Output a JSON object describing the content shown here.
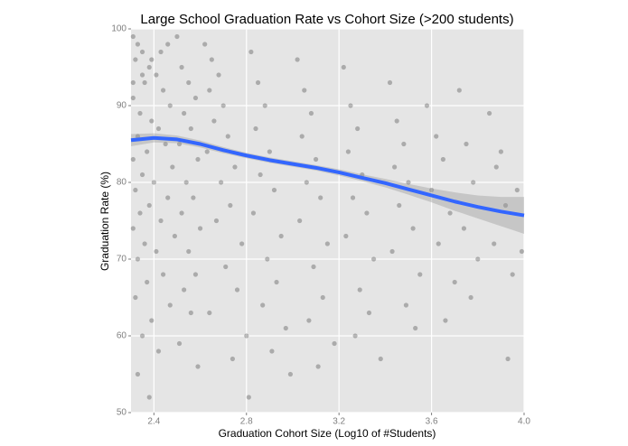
{
  "chart_data": {
    "type": "scatter",
    "title": "Large School Graduation Rate vs Cohort Size (>200 students)",
    "x_label": "Graduation Cohort Size (Log10 of #Students)",
    "y_label": "Graduation Rate (%)",
    "xlim": [
      2.301,
      4.0
    ],
    "ylim": [
      50,
      100
    ],
    "xticks": [
      2.4,
      2.8,
      3.2,
      3.6,
      {
        "value": 4.0,
        "label": "4.0"
      }
    ],
    "yticks": [
      50,
      60,
      70,
      80,
      90,
      100
    ],
    "grid": true,
    "series": [
      {
        "color": "#000000",
        "x": [
          2.31,
          2.33,
          2.35,
          2.32,
          2.38,
          2.41,
          2.36,
          2.44,
          2.31,
          2.47,
          2.34,
          2.39,
          2.42,
          2.33,
          2.45,
          2.37,
          2.31,
          2.48,
          2.35,
          2.4,
          2.32,
          2.46,
          2.38,
          2.34,
          2.43,
          2.31,
          2.49,
          2.36,
          2.41,
          2.33,
          2.44,
          2.37,
          2.32,
          2.47,
          2.39,
          2.35,
          2.42,
          2.33,
          2.38,
          2.31,
          2.35,
          2.39,
          2.43,
          2.46,
          2.5,
          2.52,
          2.55,
          2.58,
          2.53,
          2.56,
          2.51,
          2.59,
          2.54,
          2.57,
          2.52,
          2.6,
          2.55,
          2.58,
          2.53,
          2.56,
          2.51,
          2.59,
          2.62,
          2.65,
          2.68,
          2.64,
          2.7,
          2.66,
          2.72,
          2.63,
          2.75,
          2.69,
          2.73,
          2.67,
          2.78,
          2.71,
          2.76,
          2.64,
          2.8,
          2.74,
          2.82,
          2.85,
          2.88,
          2.84,
          2.9,
          2.86,
          2.92,
          2.83,
          2.95,
          2.89,
          2.93,
          2.87,
          2.97,
          2.91,
          2.99,
          2.81,
          3.02,
          3.05,
          3.08,
          3.04,
          3.1,
          3.06,
          3.12,
          3.03,
          3.15,
          3.09,
          3.13,
          3.07,
          3.18,
          3.11,
          3.22,
          3.25,
          3.28,
          3.24,
          3.3,
          3.26,
          3.32,
          3.23,
          3.35,
          3.29,
          3.33,
          3.27,
          3.38,
          3.42,
          3.45,
          3.48,
          3.44,
          3.5,
          3.46,
          3.52,
          3.43,
          3.55,
          3.49,
          3.53,
          3.58,
          3.62,
          3.65,
          3.6,
          3.68,
          3.63,
          3.7,
          3.66,
          3.72,
          3.75,
          3.78,
          3.74,
          3.8,
          3.77,
          3.85,
          3.88,
          3.92,
          3.87,
          3.95,
          3.9,
          3.97,
          3.93,
          3.99
        ],
        "values": [
          99,
          98,
          97,
          96,
          95,
          94,
          93,
          92,
          91,
          90,
          89,
          88,
          87,
          86,
          85,
          84,
          83,
          82,
          81,
          80,
          79,
          78,
          77,
          76,
          75,
          74,
          73,
          72,
          71,
          70,
          68,
          67,
          65,
          64,
          62,
          60,
          58,
          55,
          52,
          93,
          94,
          96,
          97,
          98,
          99,
          95,
          93,
          91,
          89,
          87,
          85,
          83,
          80,
          78,
          76,
          74,
          71,
          68,
          66,
          63,
          59,
          56,
          98,
          96,
          94,
          92,
          90,
          88,
          86,
          84,
          82,
          80,
          77,
          75,
          72,
          69,
          66,
          63,
          60,
          57,
          97,
          93,
          90,
          87,
          84,
          81,
          79,
          76,
          73,
          70,
          67,
          64,
          61,
          58,
          55,
          52,
          96,
          92,
          89,
          86,
          83,
          80,
          78,
          75,
          72,
          69,
          65,
          62,
          59,
          56,
          95,
          90,
          87,
          84,
          81,
          78,
          76,
          73,
          70,
          66,
          63,
          60,
          57,
          93,
          88,
          85,
          82,
          80,
          77,
          74,
          71,
          68,
          64,
          61,
          90,
          86,
          83,
          79,
          76,
          72,
          67,
          62,
          92,
          85,
          80,
          74,
          70,
          65,
          89,
          82,
          77,
          72,
          68,
          84,
          79,
          57,
          71
        ]
      }
    ],
    "smooth": {
      "color": "#3366ff",
      "band_color": "#999999",
      "x": [
        2.301,
        2.4,
        2.5,
        2.6,
        2.7,
        2.8,
        2.9,
        3.0,
        3.1,
        3.2,
        3.3,
        3.4,
        3.5,
        3.6,
        3.7,
        3.8,
        3.9,
        4.0
      ],
      "values": [
        85.5,
        85.8,
        85.6,
        85.0,
        84.2,
        83.5,
        82.9,
        82.4,
        81.9,
        81.3,
        80.6,
        79.9,
        79.1,
        78.3,
        77.5,
        76.8,
        76.2,
        75.7
      ],
      "upper": [
        86.3,
        86.4,
        86.1,
        85.45,
        84.6,
        83.85,
        83.25,
        82.75,
        82.25,
        81.7,
        81.05,
        80.45,
        79.8,
        79.2,
        78.7,
        78.3,
        78.1,
        78.1
      ],
      "lower": [
        84.7,
        85.2,
        85.1,
        84.55,
        83.8,
        83.15,
        82.55,
        82.05,
        81.55,
        80.9,
        80.15,
        79.35,
        78.4,
        77.4,
        76.3,
        75.3,
        74.3,
        73.3
      ]
    }
  }
}
